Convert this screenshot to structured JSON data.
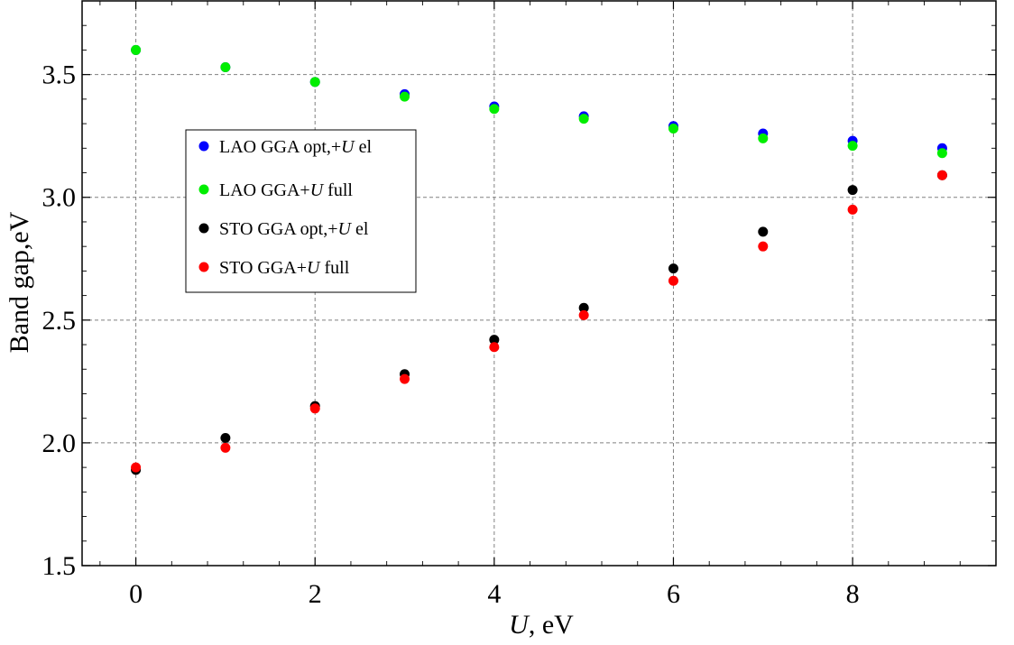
{
  "chart_data": {
    "type": "scatter",
    "title": "",
    "xlabel_var": "U",
    "xlabel_unit": ", eV",
    "ylabel": "Band gap,eV",
    "xlim": [
      -0.6,
      9.6
    ],
    "ylim": [
      1.5,
      3.8
    ],
    "xticks": [
      "0",
      "2",
      "4",
      "6",
      "8"
    ],
    "yticks": [
      "1.5",
      "2.0",
      "2.5",
      "3.0",
      "3.5"
    ],
    "grid": true,
    "legend_position": "upper-left",
    "series": [
      {
        "name_prefix": "LAO GGA opt,+",
        "name_var": "U",
        "name_suffix": " el",
        "color": "#0000ff",
        "x": [
          0,
          1,
          2,
          3,
          4,
          5,
          6,
          7,
          8,
          9
        ],
        "y": [
          3.6,
          3.53,
          3.47,
          3.42,
          3.37,
          3.33,
          3.29,
          3.26,
          3.23,
          3.2
        ]
      },
      {
        "name_prefix": "LAO GGA+",
        "name_var": "U",
        "name_suffix": " full",
        "color": "#00ee00",
        "x": [
          0,
          1,
          2,
          3,
          4,
          5,
          6,
          7,
          8,
          9
        ],
        "y": [
          3.6,
          3.53,
          3.47,
          3.41,
          3.36,
          3.32,
          3.28,
          3.24,
          3.21,
          3.18
        ]
      },
      {
        "name_prefix": "STO GGA opt,+",
        "name_var": "U",
        "name_suffix": " el",
        "color": "#000000",
        "x": [
          0,
          1,
          2,
          3,
          4,
          5,
          6,
          7,
          8,
          9
        ],
        "y": [
          1.89,
          2.02,
          2.15,
          2.28,
          2.42,
          2.55,
          2.71,
          2.86,
          3.03,
          3.09
        ]
      },
      {
        "name_prefix": "STO GGA+",
        "name_var": "U",
        "name_suffix": " full",
        "color": "#ff0000",
        "x": [
          0,
          1,
          2,
          3,
          4,
          5,
          6,
          7,
          8,
          9
        ],
        "y": [
          1.9,
          1.98,
          2.14,
          2.26,
          2.39,
          2.52,
          2.66,
          2.8,
          2.95,
          3.09
        ]
      }
    ]
  }
}
